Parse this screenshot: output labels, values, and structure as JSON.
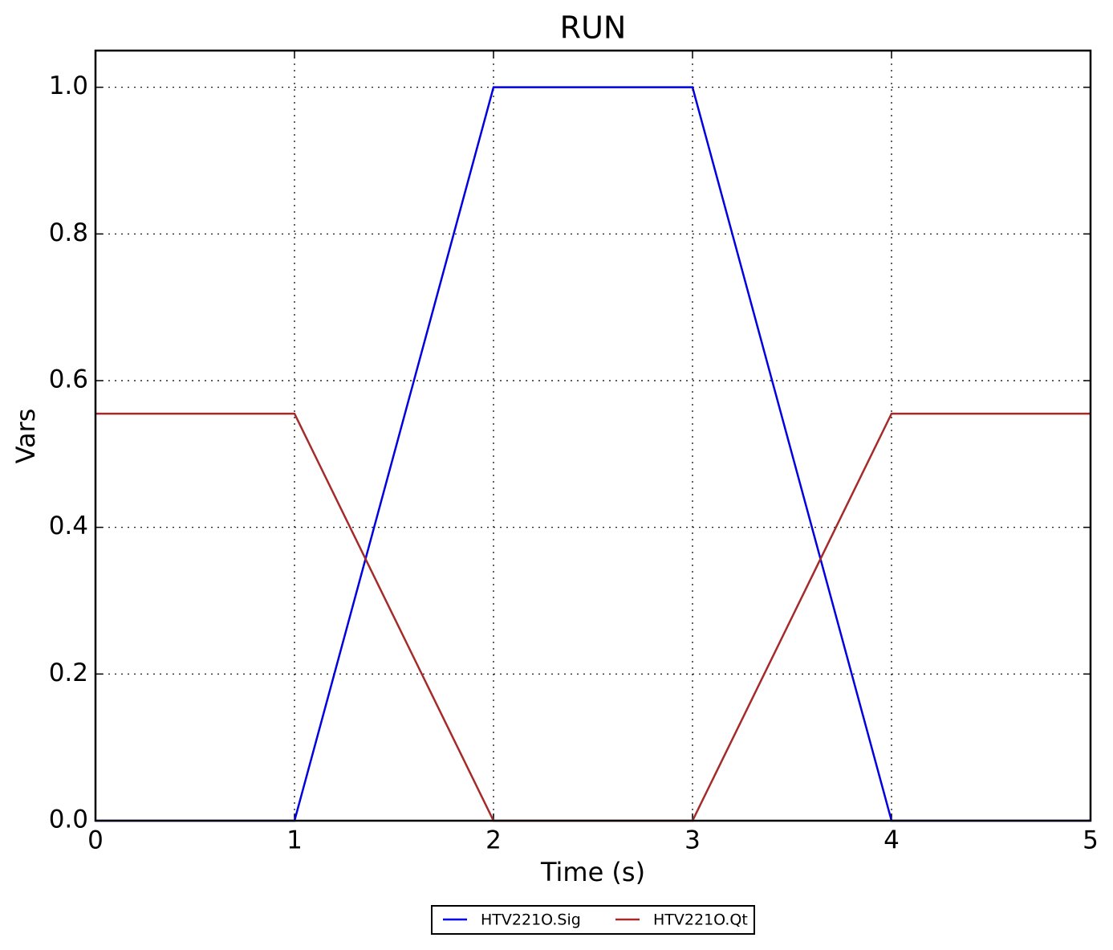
{
  "chart_data": {
    "type": "line",
    "title": "RUN",
    "xlabel": "Time (s)",
    "ylabel": "Vars",
    "x": [
      0,
      1,
      2,
      3,
      4,
      5
    ],
    "series": [
      {
        "name": "HTV221O.Sig",
        "color": "#0000e0",
        "values": [
          0,
          0,
          1,
          1,
          0,
          0
        ]
      },
      {
        "name": "HTV221O.Qt",
        "color": "#a52a2a",
        "values": [
          0.555,
          0.555,
          0,
          0,
          0.555,
          0.555
        ]
      }
    ],
    "xlim": [
      0,
      5
    ],
    "xticks": [
      0,
      1,
      2,
      3,
      4,
      5
    ],
    "ylim": [
      0,
      1.05
    ],
    "yticks": [
      {
        "value": 0,
        "label": "0.0"
      },
      0.2,
      0.4,
      0.6,
      0.8,
      {
        "value": 1,
        "label": "1.0"
      }
    ],
    "grid": true,
    "legend": "bottom"
  }
}
